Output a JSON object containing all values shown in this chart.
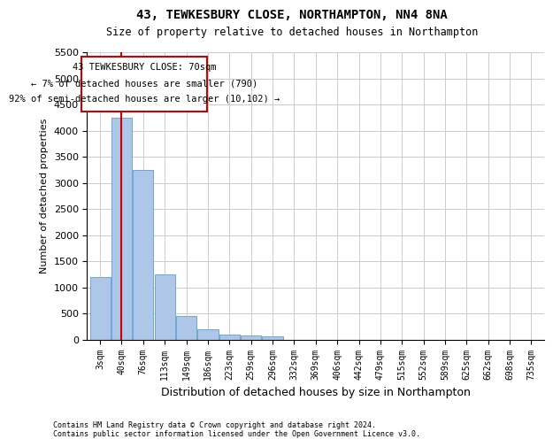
{
  "title": "43, TEWKESBURY CLOSE, NORTHAMPTON, NN4 8NA",
  "subtitle": "Size of property relative to detached houses in Northampton",
  "xlabel": "Distribution of detached houses by size in Northampton",
  "ylabel": "Number of detached properties",
  "bar_color": "#aec6e8",
  "bar_edge_color": "#6aaad4",
  "annotation_box_color": "#cc0000",
  "annotation_line1": "43 TEWKESBURY CLOSE: 70sqm",
  "annotation_line2": "← 7% of detached houses are smaller (790)",
  "annotation_line3": "92% of semi-detached houses are larger (10,102) →",
  "highlight_bar_index": 1,
  "bin_labels": [
    "3sqm",
    "40sqm",
    "76sqm",
    "113sqm",
    "149sqm",
    "186sqm",
    "223sqm",
    "259sqm",
    "296sqm",
    "332sqm",
    "369sqm",
    "406sqm",
    "442sqm",
    "479sqm",
    "515sqm",
    "552sqm",
    "589sqm",
    "625sqm",
    "662sqm",
    "698sqm",
    "735sqm"
  ],
  "bar_values": [
    1200,
    4250,
    3250,
    1250,
    450,
    200,
    100,
    75,
    60,
    0,
    0,
    0,
    0,
    0,
    0,
    0,
    0,
    0,
    0,
    0,
    0
  ],
  "ylim": [
    0,
    5500
  ],
  "yticks": [
    0,
    500,
    1000,
    1500,
    2000,
    2500,
    3000,
    3500,
    4000,
    4500,
    5000,
    5500
  ],
  "footer_line1": "Contains HM Land Registry data © Crown copyright and database right 2024.",
  "footer_line2": "Contains public sector information licensed under the Open Government Licence v3.0.",
  "background_color": "#ffffff",
  "grid_color": "#cccccc"
}
